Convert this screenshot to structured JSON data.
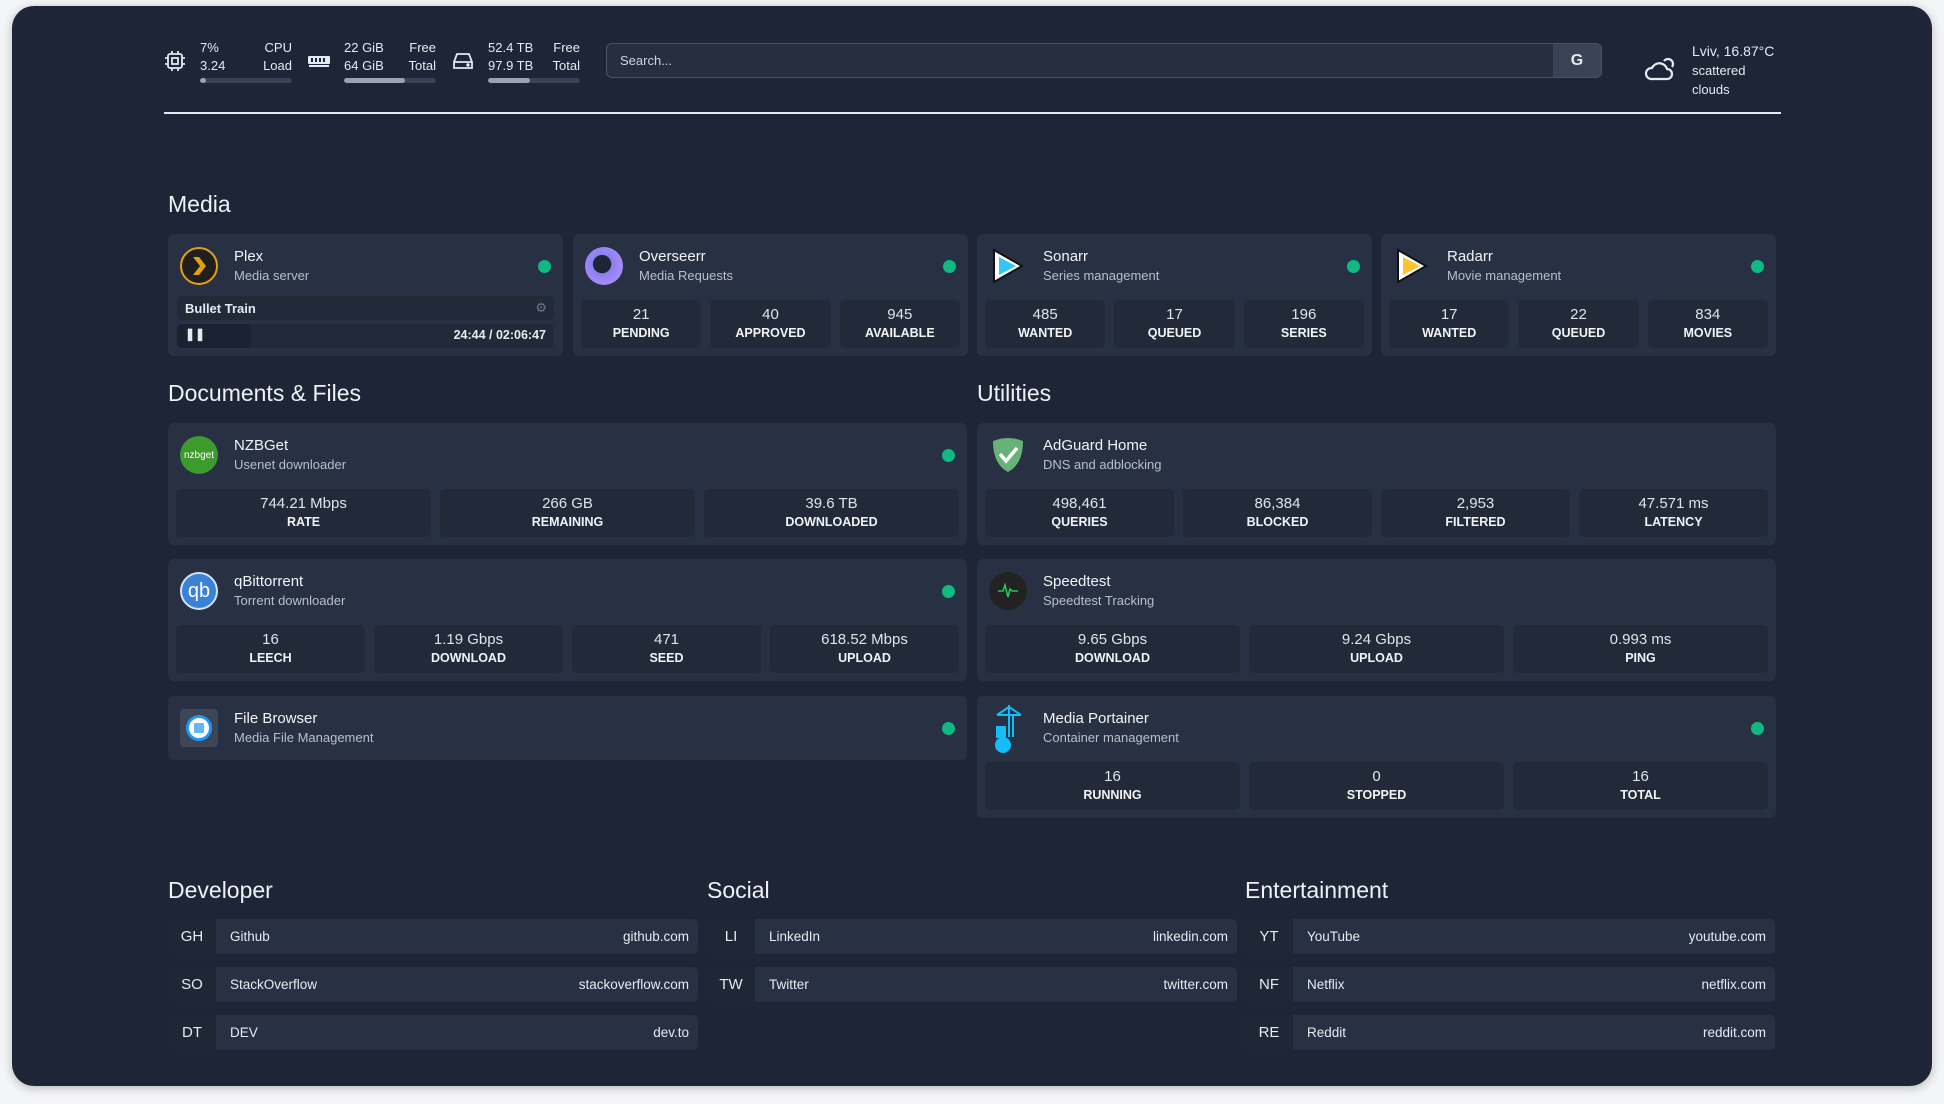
{
  "topbar": {
    "cpu": {
      "icon": "cpu-icon",
      "value1": "7%",
      "label1": "CPU",
      "value2": "3.24",
      "label2": "Load",
      "percent": 7
    },
    "memory": {
      "icon": "memory-icon",
      "value1": "22 GiB",
      "label1": "Free",
      "value2": "64 GiB",
      "label2": "Total",
      "percent": 66
    },
    "disk": {
      "icon": "disk-icon",
      "value1": "52.4 TB",
      "label1": "Free",
      "value2": "97.9 TB",
      "label2": "Total",
      "percent": 46
    },
    "search": {
      "placeholder": "Search...",
      "provider": "G"
    },
    "weather": {
      "icon": "cloud-sun-icon",
      "location": "Lviv, 16.87°C",
      "condition": "scattered clouds"
    }
  },
  "sections": {
    "media": "Media",
    "docs": "Documents & Files",
    "utilities": "Utilities",
    "developer": "Developer",
    "social": "Social",
    "entertainment": "Entertainment"
  },
  "colors": {
    "status_ok": "#10b981",
    "background": "#1e2536",
    "card": "#283143"
  },
  "media": [
    {
      "name": "Plex",
      "desc": "Media server",
      "now_playing": {
        "title": "Bullet Train",
        "time": "24:44 / 02:06:47",
        "progress": 19.5
      }
    },
    {
      "name": "Overseerr",
      "desc": "Media Requests",
      "stats": [
        {
          "v": "21",
          "l": "PENDING"
        },
        {
          "v": "40",
          "l": "APPROVED"
        },
        {
          "v": "945",
          "l": "AVAILABLE"
        }
      ]
    },
    {
      "name": "Sonarr",
      "desc": "Series management",
      "stats": [
        {
          "v": "485",
          "l": "WANTED"
        },
        {
          "v": "17",
          "l": "QUEUED"
        },
        {
          "v": "196",
          "l": "SERIES"
        }
      ]
    },
    {
      "name": "Radarr",
      "desc": "Movie management",
      "stats": [
        {
          "v": "17",
          "l": "WANTED"
        },
        {
          "v": "22",
          "l": "QUEUED"
        },
        {
          "v": "834",
          "l": "MOVIES"
        }
      ]
    }
  ],
  "docs": [
    {
      "name": "NZBGet",
      "desc": "Usenet downloader",
      "logo_text": "nzbget",
      "stats": [
        {
          "v": "744.21 Mbps",
          "l": "RATE"
        },
        {
          "v": "266 GB",
          "l": "REMAINING"
        },
        {
          "v": "39.6 TB",
          "l": "DOWNLOADED"
        }
      ]
    },
    {
      "name": "qBittorrent",
      "desc": "Torrent downloader",
      "logo_text": "qb",
      "stats": [
        {
          "v": "16",
          "l": "LEECH"
        },
        {
          "v": "1.19 Gbps",
          "l": "DOWNLOAD"
        },
        {
          "v": "471",
          "l": "SEED"
        },
        {
          "v": "618.52 Mbps",
          "l": "UPLOAD"
        }
      ]
    },
    {
      "name": "File Browser",
      "desc": "Media File Management"
    }
  ],
  "utilities": [
    {
      "name": "AdGuard Home",
      "desc": "DNS and adblocking",
      "stats": [
        {
          "v": "498,461",
          "l": "QUERIES"
        },
        {
          "v": "86,384",
          "l": "BLOCKED"
        },
        {
          "v": "2,953",
          "l": "FILTERED"
        },
        {
          "v": "47.571 ms",
          "l": "LATENCY"
        }
      ]
    },
    {
      "name": "Speedtest",
      "desc": "Speedtest Tracking",
      "stats": [
        {
          "v": "9.65 Gbps",
          "l": "DOWNLOAD"
        },
        {
          "v": "9.24 Gbps",
          "l": "UPLOAD"
        },
        {
          "v": "0.993 ms",
          "l": "PING"
        }
      ]
    },
    {
      "name": "Media Portainer",
      "desc": "Container management",
      "stats": [
        {
          "v": "16",
          "l": "RUNNING"
        },
        {
          "v": "0",
          "l": "STOPPED"
        },
        {
          "v": "16",
          "l": "TOTAL"
        }
      ]
    }
  ],
  "bookmarks": {
    "developer": [
      {
        "ab": "GH",
        "name": "Github",
        "url": "github.com"
      },
      {
        "ab": "SO",
        "name": "StackOverflow",
        "url": "stackoverflow.com"
      },
      {
        "ab": "DT",
        "name": "DEV",
        "url": "dev.to"
      }
    ],
    "social": [
      {
        "ab": "LI",
        "name": "LinkedIn",
        "url": "linkedin.com"
      },
      {
        "ab": "TW",
        "name": "Twitter",
        "url": "twitter.com"
      }
    ],
    "entertainment": [
      {
        "ab": "YT",
        "name": "YouTube",
        "url": "youtube.com"
      },
      {
        "ab": "NF",
        "name": "Netflix",
        "url": "netflix.com"
      },
      {
        "ab": "RE",
        "name": "Reddit",
        "url": "reddit.com"
      }
    ]
  }
}
